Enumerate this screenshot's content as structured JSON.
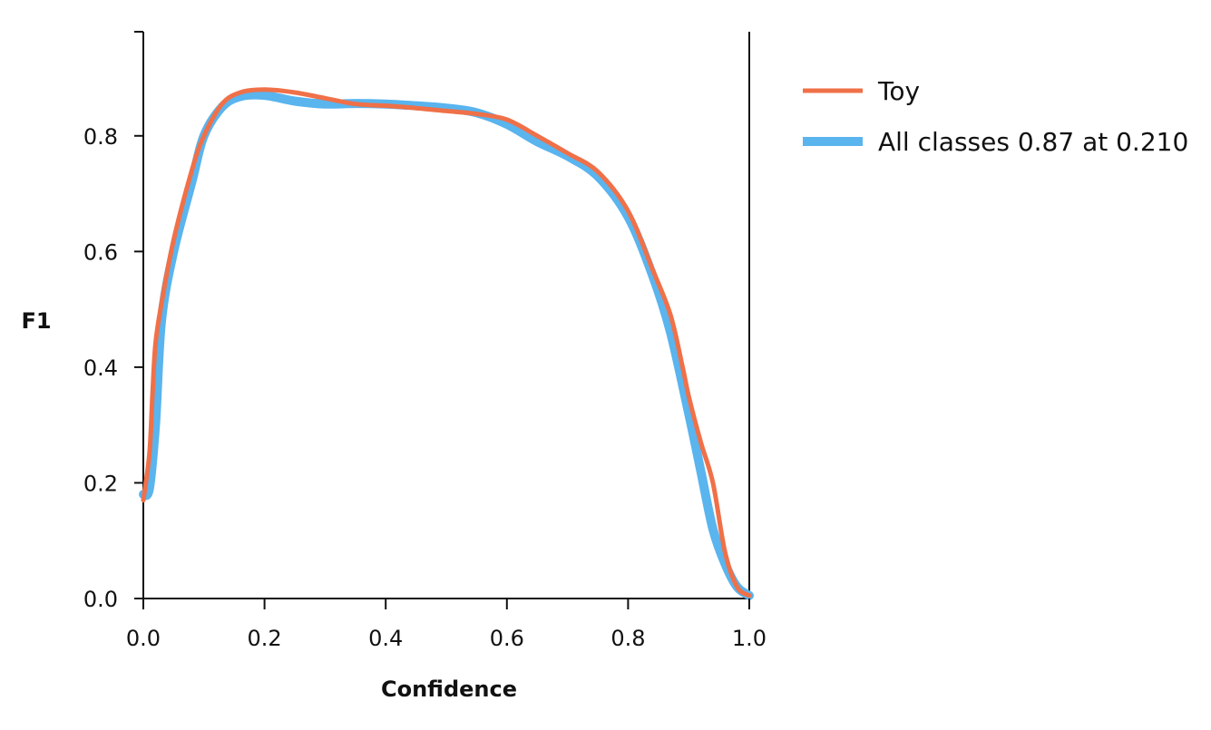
{
  "chart_data": {
    "type": "line",
    "title": "",
    "xlabel": "Confidence",
    "ylabel": "F1",
    "xlim": [
      0.0,
      1.0
    ],
    "ylim": [
      0.0,
      0.98
    ],
    "xticks": [
      "0.0",
      "0.2",
      "0.4",
      "0.6",
      "0.8",
      "1.0"
    ],
    "yticks": [
      "0.0",
      "0.2",
      "0.4",
      "0.6",
      "0.8"
    ],
    "grid": false,
    "legend_position": "outside-right",
    "series": [
      {
        "name": "Toy",
        "color": "#f07048",
        "x": [
          0.0,
          0.01,
          0.015,
          0.02,
          0.03,
          0.05,
          0.08,
          0.1,
          0.13,
          0.16,
          0.2,
          0.25,
          0.3,
          0.35,
          0.4,
          0.45,
          0.5,
          0.55,
          0.6,
          0.65,
          0.7,
          0.75,
          0.8,
          0.84,
          0.87,
          0.89,
          0.9,
          0.92,
          0.94,
          0.96,
          0.98,
          1.0
        ],
        "y": [
          0.17,
          0.25,
          0.35,
          0.44,
          0.51,
          0.62,
          0.74,
          0.8,
          0.855,
          0.875,
          0.88,
          0.875,
          0.865,
          0.855,
          0.852,
          0.848,
          0.843,
          0.838,
          0.828,
          0.8,
          0.77,
          0.738,
          0.67,
          0.57,
          0.49,
          0.4,
          0.35,
          0.27,
          0.2,
          0.08,
          0.02,
          0.005
        ]
      },
      {
        "name": "All classes 0.87 at 0.210",
        "color": "#5ab4ee",
        "x": [
          0.0,
          0.01,
          0.02,
          0.03,
          0.05,
          0.08,
          0.1,
          0.13,
          0.16,
          0.2,
          0.25,
          0.3,
          0.35,
          0.4,
          0.45,
          0.5,
          0.55,
          0.6,
          0.65,
          0.7,
          0.75,
          0.8,
          0.84,
          0.87,
          0.9,
          0.92,
          0.94,
          0.96,
          0.98,
          1.0
        ],
        "y": [
          0.18,
          0.19,
          0.3,
          0.48,
          0.6,
          0.72,
          0.8,
          0.85,
          0.868,
          0.87,
          0.86,
          0.855,
          0.856,
          0.855,
          0.852,
          0.848,
          0.84,
          0.82,
          0.79,
          0.765,
          0.73,
          0.66,
          0.56,
          0.46,
          0.32,
          0.22,
          0.12,
          0.06,
          0.02,
          0.005
        ]
      }
    ]
  }
}
